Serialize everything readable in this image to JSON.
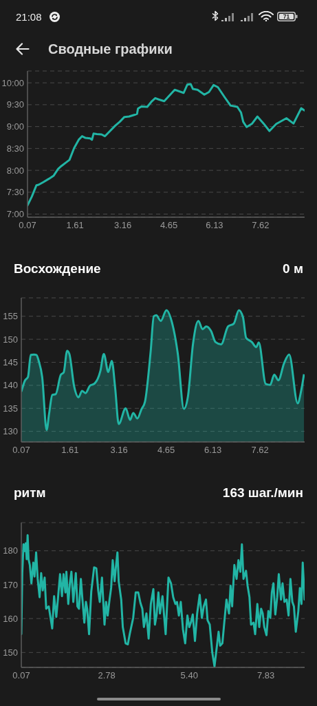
{
  "chart_data": [
    {
      "type": "line",
      "title": "Сводные графики",
      "annotations": [
        "21:08",
        "71"
      ],
      "color": "#22b5a5",
      "x": [
        0.07,
        0.21,
        0.36,
        0.43,
        0.58,
        0.77,
        0.92,
        1.06,
        1.17,
        1.32,
        1.43,
        1.58,
        1.73,
        1.84,
        1.95,
        2.1,
        2.16,
        2.21,
        2.32,
        2.47,
        2.58,
        2.69,
        2.91,
        3.06,
        3.21,
        3.36,
        3.54,
        3.62,
        3.65,
        3.76,
        3.95,
        4.1,
        4.21,
        4.32,
        4.5,
        4.84,
        5.13,
        5.25,
        5.36,
        5.43,
        5.58,
        5.8,
        5.95,
        6.1,
        6.24,
        6.47,
        6.65,
        6.87,
        6.99,
        7.06,
        7.17,
        7.35,
        7.52,
        7.72,
        7.91,
        8.13,
        8.46,
        8.69,
        8.94,
        9.04
      ],
      "values": [
        7.2,
        7.4,
        7.66,
        7.67,
        7.73,
        7.81,
        7.88,
        8.03,
        8.1,
        8.18,
        8.24,
        8.51,
        8.7,
        8.78,
        8.74,
        8.73,
        8.7,
        8.84,
        8.83,
        8.82,
        8.78,
        8.86,
        9.02,
        9.11,
        9.22,
        9.23,
        9.27,
        9.29,
        9.41,
        9.46,
        9.45,
        9.58,
        9.65,
        9.62,
        9.58,
        9.84,
        9.77,
        9.96,
        9.97,
        9.86,
        9.84,
        9.73,
        9.79,
        9.95,
        9.9,
        9.66,
        9.48,
        9.45,
        9.32,
        9.11,
        8.99,
        9.07,
        9.23,
        9.07,
        8.9,
        9.06,
        9.19,
        9.07,
        9.42,
        9.37
      ],
      "xlim": [
        0.07,
        9.05
      ],
      "xticks": [
        0.07,
        1.61,
        3.16,
        4.65,
        6.13,
        7.62
      ],
      "ylim": [
        6.93,
        10.27
      ],
      "yticks": [
        {
          "value": 7,
          "label": "7:00"
        },
        {
          "value": 7.5,
          "label": "7:30"
        },
        {
          "value": 8,
          "label": "8:00"
        },
        {
          "value": 8.5,
          "label": "8:30"
        },
        {
          "value": 9,
          "label": "9:00"
        },
        {
          "value": 9.5,
          "label": "9:30"
        },
        {
          "value": 10,
          "label": "10:00"
        }
      ],
      "grid": "y"
    },
    {
      "type": "area",
      "title": "Восхождение",
      "subtitle": "0 м",
      "color": "#22b5a5",
      "x": [
        0.07,
        0.19,
        0.28,
        0.37,
        0.47,
        0.55,
        0.62,
        0.73,
        0.87,
        0.95,
        1.05,
        1.16,
        1.32,
        1.41,
        1.52,
        1.59,
        1.74,
        1.88,
        1.99,
        2.1,
        2.24,
        2.39,
        2.57,
        2.68,
        2.82,
        2.93,
        3.04,
        3.15,
        3.37,
        3.51,
        3.61,
        3.74,
        3.87,
        3.98,
        4.16,
        4.26,
        4.34,
        4.48,
        4.66,
        4.84,
        5.02,
        5.21,
        5.34,
        5.5,
        5.67,
        5.8,
        5.92,
        6.07,
        6.21,
        6.39,
        6.61,
        6.79,
        6.95,
        7.08,
        7.18,
        7.36,
        7.5,
        7.58,
        7.8,
        7.94,
        8.07,
        8.2,
        8.38,
        8.54,
        8.81,
        8.92,
        9.01
      ],
      "values": [
        138.6,
        141.1,
        141.8,
        146.6,
        146.7,
        146.6,
        145.3,
        141.8,
        130.3,
        133.9,
        137.9,
        138.1,
        142.3,
        142.8,
        147.5,
        146.8,
        139.8,
        137.4,
        138.8,
        138.3,
        139.9,
        140.4,
        143.1,
        146.8,
        142.9,
        145.3,
        139.3,
        131.6,
        135.0,
        132.5,
        134.0,
        132.8,
        134.8,
        136.4,
        147.3,
        155.0,
        155.2,
        154.0,
        156.3,
        153.5,
        146.8,
        134.9,
        137.6,
        149.0,
        154.0,
        152.2,
        152.8,
        151.8,
        149.4,
        148.9,
        152.8,
        153.4,
        156.3,
        154.8,
        150.3,
        149.4,
        148.3,
        149.3,
        140.3,
        140.1,
        142.3,
        141.1,
        144.8,
        146.7,
        136.1,
        138.8,
        142.4
      ],
      "xlim": [
        0.07,
        9.03
      ],
      "xticks": [
        0.07,
        1.61,
        3.16,
        4.65,
        6.13,
        7.62
      ],
      "ylim": [
        127.7,
        159
      ],
      "yticks": [
        130,
        135,
        140,
        145,
        150,
        155
      ],
      "grid": "y"
    },
    {
      "type": "line",
      "title": "ритм",
      "subtitle": "163 шаг./мин",
      "color": "#22b5a5",
      "x": [
        0.07,
        0.1,
        0.14,
        0.18,
        0.21,
        0.24,
        0.27,
        0.3,
        0.34,
        0.39,
        0.45,
        0.49,
        0.54,
        0.59,
        0.65,
        0.7,
        0.75,
        0.81,
        0.86,
        0.94,
        1.01,
        1.05,
        1.11,
        1.18,
        1.23,
        1.3,
        1.36,
        1.41,
        1.47,
        1.5,
        1.56,
        1.61,
        1.66,
        1.72,
        1.8,
        1.85,
        1.9,
        1.96,
        2.01,
        2.07,
        2.12,
        2.16,
        2.22,
        2.29,
        2.38,
        2.45,
        2.51,
        2.56,
        2.63,
        2.71,
        2.76,
        2.81,
        2.87,
        2.92,
        2.97,
        3.03,
        3.07,
        3.12,
        3.16,
        3.24,
        3.29,
        3.38,
        3.45,
        3.51,
        3.62,
        3.7,
        3.78,
        3.85,
        3.91,
        3.96,
        4.04,
        4.11,
        4.18,
        4.26,
        4.31,
        4.36,
        4.42,
        4.47,
        4.55,
        4.65,
        4.74,
        4.82,
        4.89,
        4.96,
        5.01,
        5.07,
        5.13,
        5.2,
        5.27,
        5.34,
        5.4,
        5.45,
        5.51,
        5.58,
        5.65,
        5.73,
        5.8,
        5.86,
        5.93,
        5.98,
        6.05,
        6.13,
        6.2,
        6.27,
        6.33,
        6.38,
        6.45,
        6.51,
        6.58,
        6.66,
        6.71,
        6.76,
        6.83,
        6.9,
        6.96,
        7.02,
        7.07,
        7.12,
        7.2,
        7.25,
        7.31,
        7.36,
        7.44,
        7.49,
        7.56,
        7.62,
        7.68,
        7.73,
        7.78,
        7.85,
        7.91,
        7.97,
        8.02,
        8.07,
        8.13,
        8.19,
        8.24,
        8.31,
        8.36,
        8.42,
        8.49,
        8.55,
        8.61,
        8.67,
        8.72,
        8.78,
        8.86,
        8.91,
        8.96,
        9.0,
        9.06
      ],
      "values": [
        155.4,
        173.4,
        181.9,
        179.9,
        182.2,
        177.5,
        184.6,
        177.5,
        175.8,
        170.4,
        176.5,
        172.4,
        179.5,
        171.7,
        166.3,
        173.4,
        168.3,
        172.1,
        162.9,
        163.6,
        159.5,
        157.1,
        166.6,
        160.5,
        165.6,
        173.1,
        166.6,
        173.1,
        167.7,
        173.8,
        164.3,
        170.4,
        173.8,
        164.9,
        173.4,
        163.6,
        162.9,
        171.7,
        165.6,
        158.8,
        164.9,
        162.9,
        155.4,
        168.0,
        175.1,
        174.8,
        168.3,
        164.9,
        172.1,
        158.2,
        164.9,
        160.9,
        165.6,
        169.0,
        177.2,
        171.0,
        175.1,
        179.5,
        171.0,
        165.6,
        157.5,
        152.7,
        152.4,
        155.4,
        160.2,
        167.7,
        167.7,
        164.6,
        162.9,
        157.5,
        161.5,
        154.1,
        164.3,
        168.7,
        158.2,
        160.9,
        167.7,
        161.5,
        166.6,
        155.4,
        172.1,
        170.4,
        166.3,
        164.3,
        164.9,
        160.9,
        164.9,
        156.8,
        152.7,
        160.9,
        157.5,
        158.8,
        161.2,
        153.4,
        161.5,
        167.0,
        160.2,
        163.6,
        165.6,
        159.5,
        158.2,
        150.0,
        145.9,
        151.4,
        156.1,
        152.0,
        152.7,
        158.8,
        165.6,
        161.5,
        169.7,
        163.6,
        175.8,
        171.7,
        177.2,
        173.8,
        181.9,
        171.7,
        174.1,
        169.7,
        166.3,
        158.2,
        158.8,
        155.4,
        164.3,
        157.5,
        162.9,
        161.5,
        157.5,
        155.1,
        162.2,
        160.2,
        167.7,
        170.4,
        161.2,
        166.3,
        173.1,
        165.6,
        170.4,
        164.9,
        165.6,
        160.9,
        171.7,
        164.9,
        163.6,
        156.1,
        162.2,
        169.0,
        164.3,
        176.5,
        165.6
      ],
      "xlim": [
        0.07,
        9.06
      ],
      "xticks": [
        0.07,
        2.78,
        {
          "value": 5.4,
          "label": "5.40"
        },
        7.83
      ],
      "ylim": [
        145.6,
        188.3
      ],
      "yticks": [
        150,
        160,
        170,
        180
      ],
      "grid": "y"
    }
  ]
}
